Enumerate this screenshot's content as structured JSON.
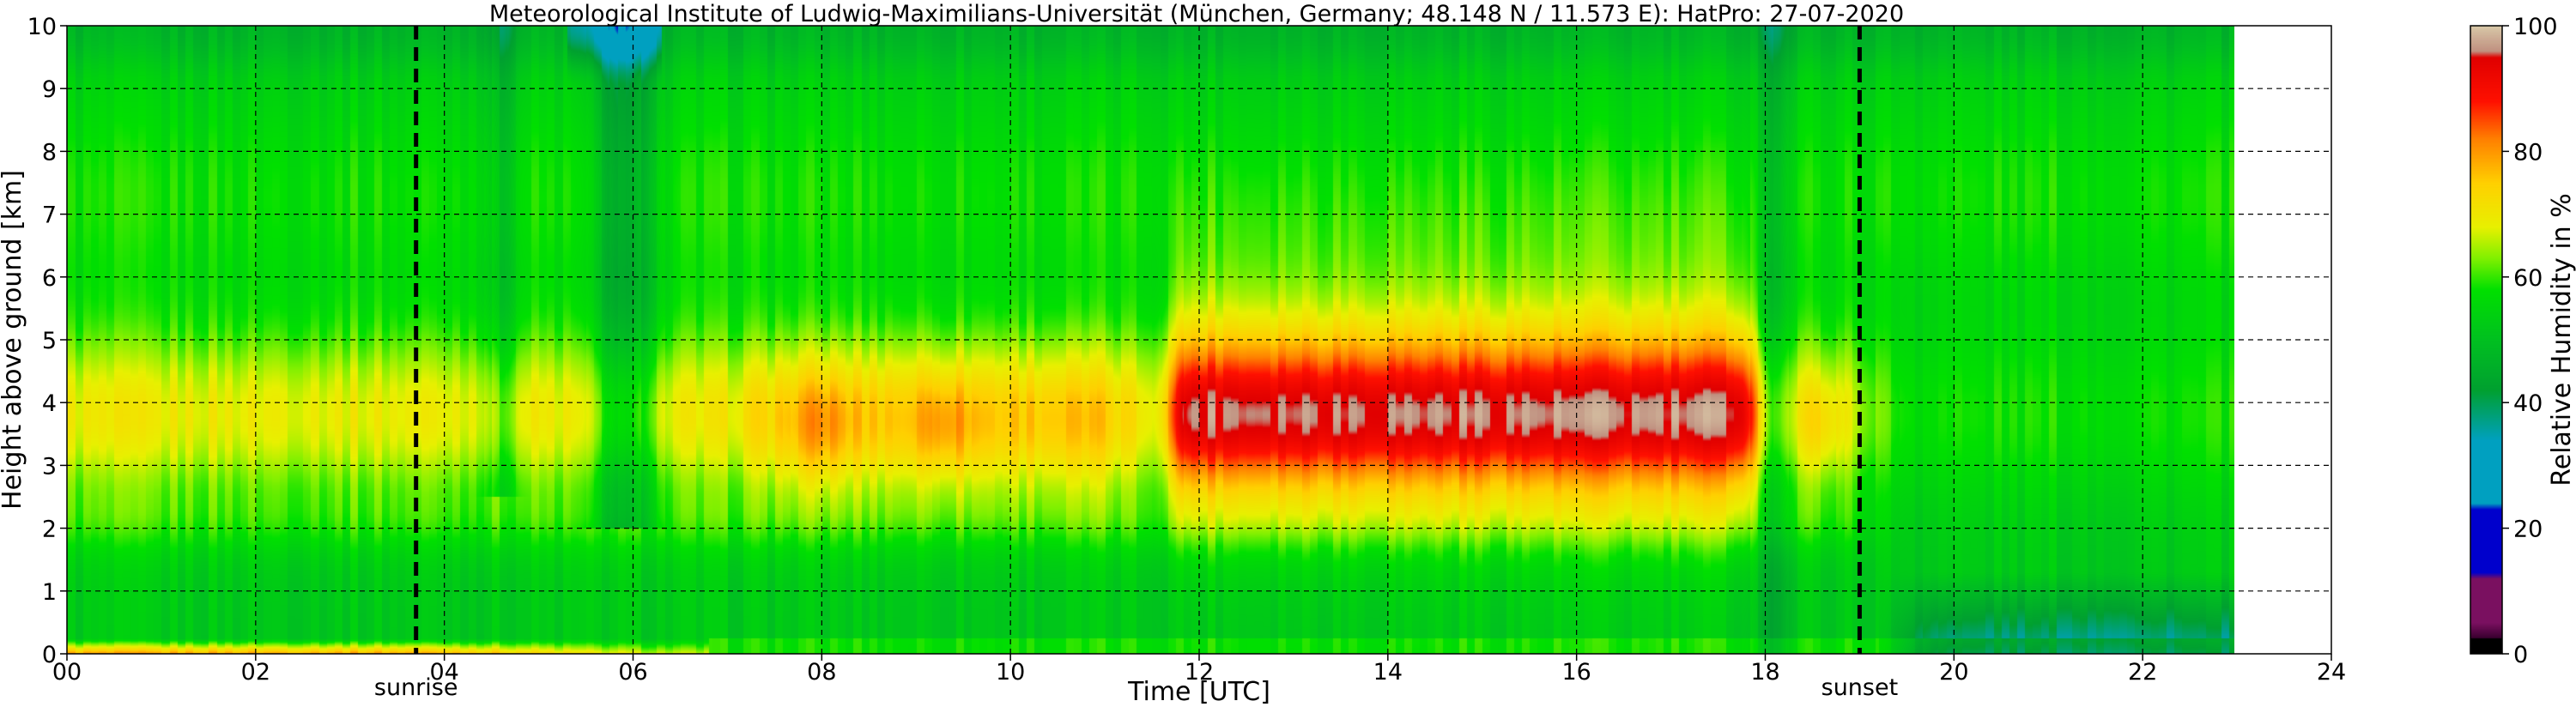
{
  "chart_data": {
    "type": "heatmap",
    "title": "Meteorological Institute of Ludwig-Maximilians-Universität (München, Germany; 48.148 N / 11.573 E):    HatPro: 27-07-2020",
    "xlabel": "Time [UTC]",
    "ylabel": "Height above ground [km]",
    "colorbar_label": "Relative Humidity in %",
    "xlim": [
      0,
      24
    ],
    "ylim": [
      0,
      10
    ],
    "clim": [
      0,
      100
    ],
    "data_extent_hours": [
      0,
      23
    ],
    "x_ticks": [
      "00",
      "02",
      "04",
      "06",
      "08",
      "10",
      "12",
      "14",
      "16",
      "18",
      "20",
      "22",
      "24"
    ],
    "x_tick_values": [
      0,
      2,
      4,
      6,
      8,
      10,
      12,
      14,
      16,
      18,
      20,
      22,
      24
    ],
    "y_ticks": [
      "0",
      "1",
      "2",
      "3",
      "4",
      "5",
      "6",
      "7",
      "8",
      "9",
      "10"
    ],
    "y_tick_values": [
      0,
      1,
      2,
      3,
      4,
      5,
      6,
      7,
      8,
      9,
      10
    ],
    "colorbar_ticks": [
      "0",
      "20",
      "40",
      "60",
      "80",
      "100"
    ],
    "colorbar_tick_values": [
      0,
      20,
      40,
      60,
      80,
      100
    ],
    "grid": true,
    "markers": [
      {
        "label": "sunrise",
        "time_h": 3.7
      },
      {
        "label": "sunset",
        "time_h": 19.0
      }
    ],
    "colormap": [
      {
        "v": 0,
        "c": "#000000"
      },
      {
        "v": 2.5,
        "c": "#000000"
      },
      {
        "v": 2.6,
        "c": "#3a0030"
      },
      {
        "v": 5,
        "c": "#7a1060"
      },
      {
        "v": 12,
        "c": "#7a1060"
      },
      {
        "v": 13,
        "c": "#0000cc"
      },
      {
        "v": 23,
        "c": "#0000cc"
      },
      {
        "v": 24,
        "c": "#00a0c0"
      },
      {
        "v": 34,
        "c": "#00a0c0"
      },
      {
        "v": 42,
        "c": "#00a030"
      },
      {
        "v": 50,
        "c": "#00c020"
      },
      {
        "v": 58,
        "c": "#00e000"
      },
      {
        "v": 63,
        "c": "#80f000"
      },
      {
        "v": 68,
        "c": "#e8f000"
      },
      {
        "v": 75,
        "c": "#ffd000"
      },
      {
        "v": 82,
        "c": "#ff8000"
      },
      {
        "v": 88,
        "c": "#ff1000"
      },
      {
        "v": 95,
        "c": "#e00000"
      },
      {
        "v": 96,
        "c": "#c09080"
      },
      {
        "v": 100,
        "c": "#d8c8a8"
      }
    ]
  }
}
